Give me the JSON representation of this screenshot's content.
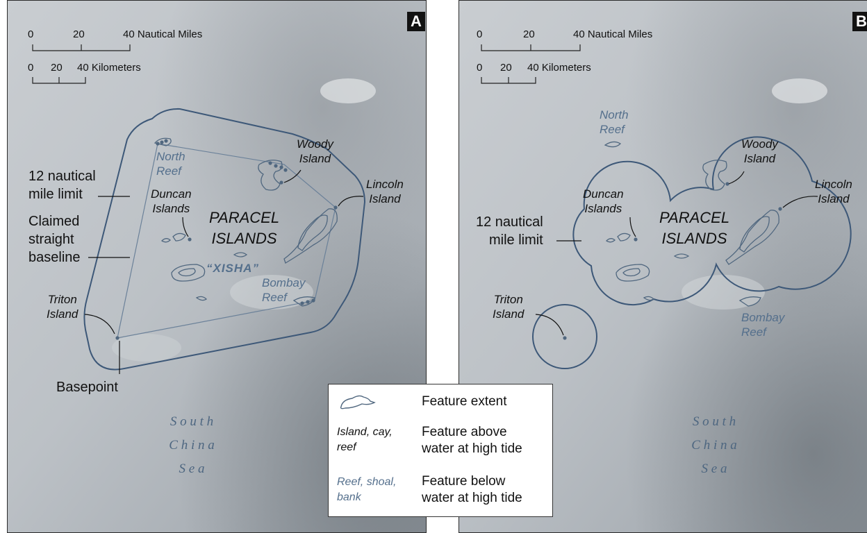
{
  "panel_a": {
    "badge": "A",
    "scale_nm": [
      "0",
      "20",
      "40 Nautical Miles"
    ],
    "scale_km": [
      "0",
      "20",
      "40 Kilometers"
    ],
    "limit_label": [
      "12 nautical",
      "mile limit"
    ],
    "baseline_label": [
      "Claimed",
      "straight",
      "baseline"
    ],
    "basepoint_label": "Basepoint",
    "north_reef": [
      "North",
      "Reef"
    ],
    "woody": [
      "Woody",
      "Island"
    ],
    "lincoln": [
      "Lincoln",
      "Island"
    ],
    "duncan": [
      "Duncan",
      "Islands"
    ],
    "paracel": [
      "PARACEL",
      "ISLANDS"
    ],
    "xisha": "“XISHA”",
    "bombay": [
      "Bombay",
      "Reef"
    ],
    "triton": [
      "Triton",
      "Island"
    ],
    "sea": [
      "S o u t h",
      "C h i n a",
      "S e a"
    ]
  },
  "panel_b": {
    "badge": "B",
    "scale_nm": [
      "0",
      "20",
      "40 Nautical Miles"
    ],
    "scale_km": [
      "0",
      "20",
      "40 Kilometers"
    ],
    "north_reef": [
      "North",
      "Reef"
    ],
    "woody": [
      "Woody",
      "Island"
    ],
    "lincoln": [
      "Lincoln",
      "Island"
    ],
    "duncan": [
      "Duncan",
      "Islands"
    ],
    "paracel": [
      "PARACEL",
      "ISLANDS"
    ],
    "limit_label": [
      "12 nautical",
      "mile limit"
    ],
    "triton": [
      "Triton",
      "Island"
    ],
    "bombay": [
      "Bombay",
      "Reef"
    ],
    "sea": [
      "S o u t h",
      "C h i n a",
      "S e a"
    ]
  },
  "legend": {
    "extent_label": "Feature extent",
    "above_key": [
      "Island, cay,",
      "reef"
    ],
    "above_label": [
      "Feature above",
      "water at high tide"
    ],
    "below_key": [
      "Reef, shoal,",
      "bank"
    ],
    "below_label": [
      "Feature below",
      "water at high tide"
    ]
  },
  "colors": {
    "line": "#3d5878",
    "blue_text": "#546f8c",
    "dark_text": "#1a1a1a"
  }
}
